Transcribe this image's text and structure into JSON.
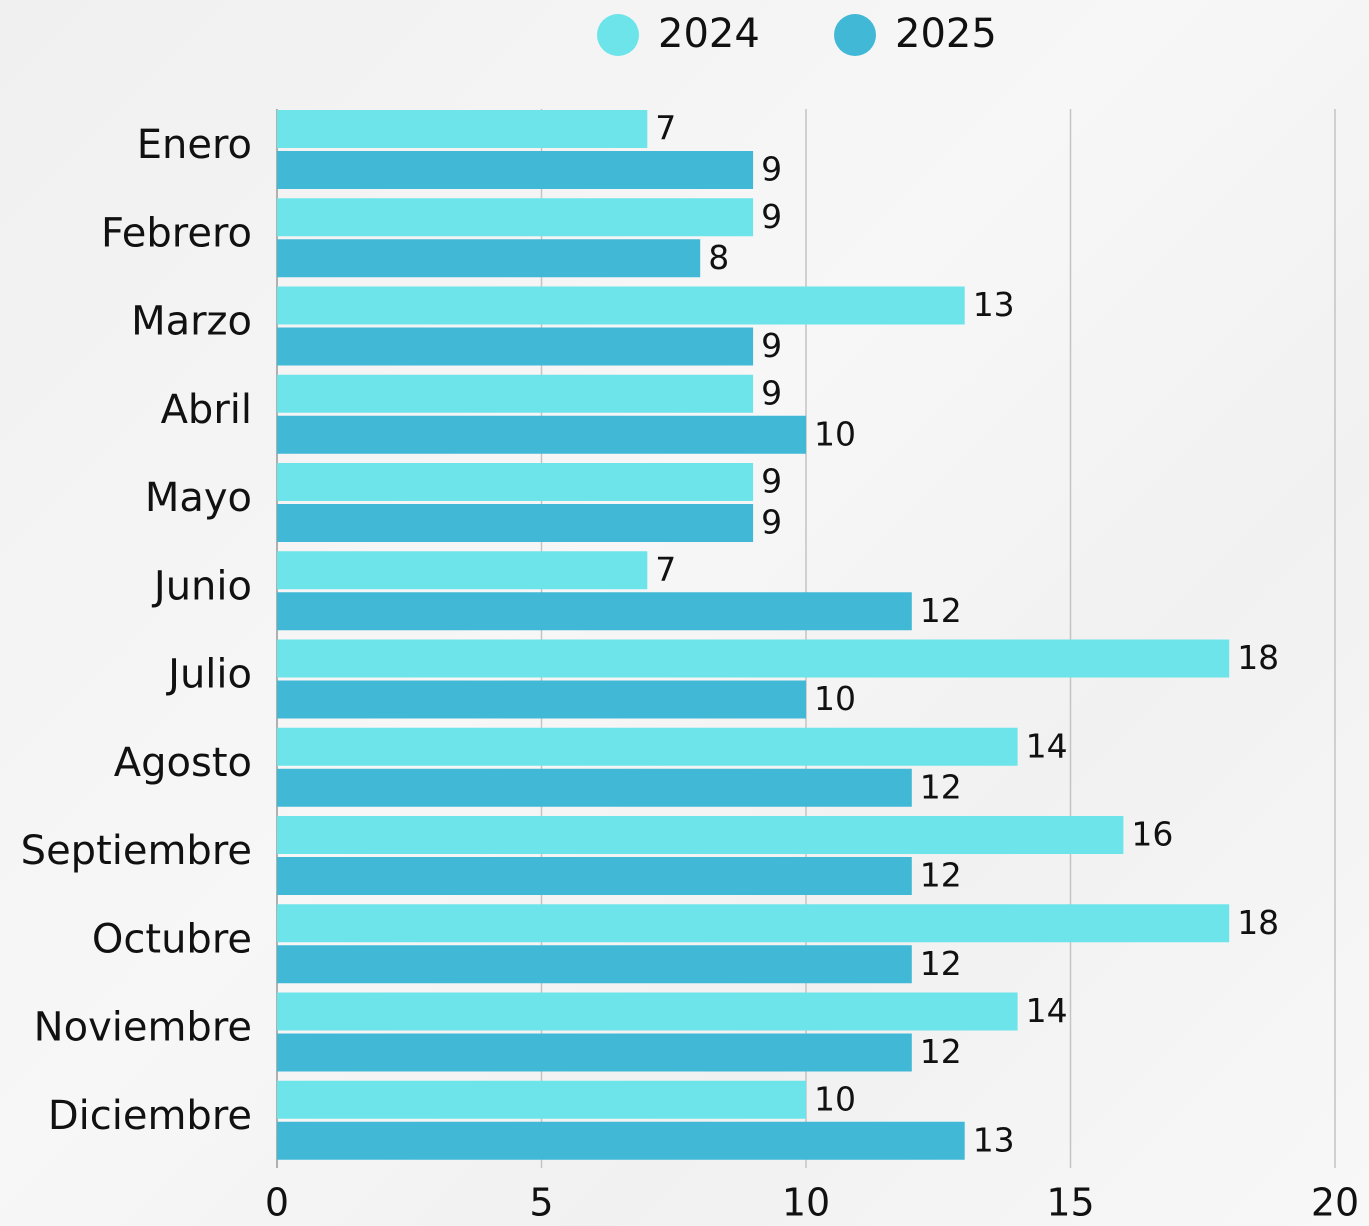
{
  "chart_data": {
    "type": "hbar",
    "categories": [
      "Enero",
      "Febrero",
      "Marzo",
      "Abril",
      "Mayo",
      "Junio",
      "Julio",
      "Agosto",
      "Septiembre",
      "Octubre",
      "Noviembre",
      "Diciembre"
    ],
    "series": [
      {
        "name": "2024",
        "color": "#6ce4e9",
        "values": [
          7,
          9,
          13,
          9,
          9,
          7,
          18,
          14,
          16,
          18,
          14,
          10
        ]
      },
      {
        "name": "2025",
        "color": "#41b8d6",
        "values": [
          9,
          8,
          9,
          10,
          9,
          12,
          10,
          12,
          12,
          12,
          12,
          13
        ]
      }
    ],
    "xlim": [
      0,
      20
    ],
    "xticks": [
      0,
      5,
      10,
      15,
      20
    ],
    "grid": true,
    "legend": "top"
  }
}
